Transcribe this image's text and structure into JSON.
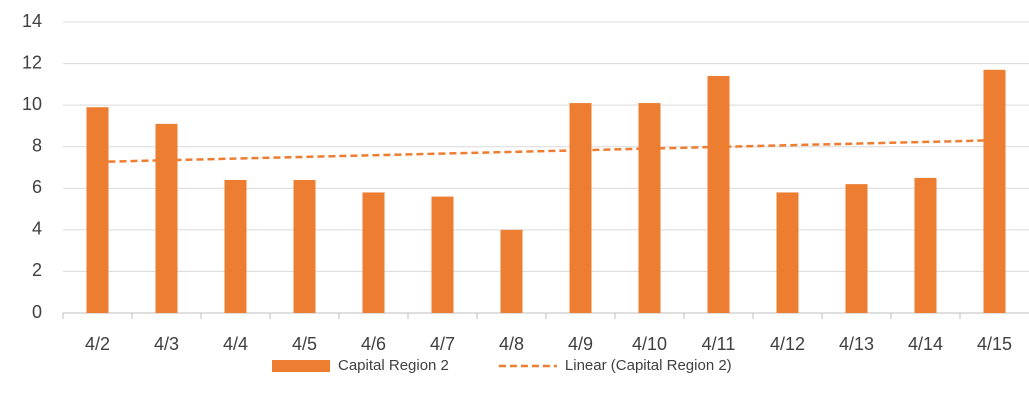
{
  "chart_data": {
    "type": "bar",
    "categories": [
      "4/2",
      "4/3",
      "4/4",
      "4/5",
      "4/6",
      "4/7",
      "4/8",
      "4/9",
      "4/10",
      "4/11",
      "4/12",
      "4/13",
      "4/14",
      "4/15"
    ],
    "series": [
      {
        "name": "Capital Region 2",
        "color": "#ed7d31",
        "type": "bar",
        "values": [
          9.9,
          9.1,
          6.4,
          6.4,
          5.8,
          5.6,
          4.0,
          10.1,
          10.1,
          11.4,
          5.8,
          6.2,
          6.5,
          11.7
        ]
      },
      {
        "name": "Linear (Capital Region 2)",
        "color": "#ed7d31",
        "type": "line",
        "dashed": true,
        "values": [
          7.27,
          7.35,
          7.43,
          7.51,
          7.59,
          7.67,
          7.75,
          7.83,
          7.91,
          7.99,
          8.07,
          8.15,
          8.23,
          8.31
        ]
      }
    ],
    "ylim": [
      0,
      14
    ],
    "yticks": [
      0,
      2,
      4,
      6,
      8,
      10,
      12,
      14
    ],
    "grid": true,
    "legend": "bottom"
  }
}
